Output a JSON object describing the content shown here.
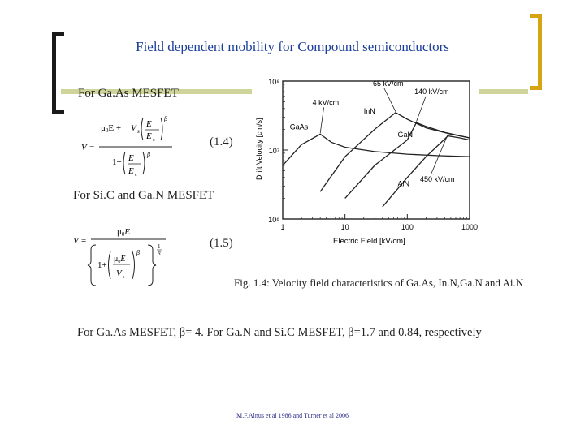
{
  "slide": {
    "title": "Field dependent mobility for Compound semiconductors",
    "gaas_heading": "For Ga.As MESFET",
    "eq1_label": "(1.4)",
    "sic_heading": "For Si.C and Ga.N MESFET",
    "eq2_label": "(1.5)",
    "caption": "Fig. 1.4: Velocity field characteristics of Ga.As, In.N,Ga.N and Ai.N",
    "beta_note": "For Ga.As MESFET, β= 4. For Ga.N and Si.C MESFET,  β=1.7 and 0.84, respectively",
    "references": "M.F.Alnus et al 1986 and Turner et al 2006"
  },
  "colors": {
    "title": "#1a3d99",
    "left_bracket": "#1a1a1a",
    "right_bracket": "#d6a514",
    "accent_bar": "#cfd49a"
  },
  "chart_data": {
    "type": "line",
    "xlabel": "Electric Field [kV/cm]",
    "ylabel": "Drift Velocity [cm/s]",
    "x_scale": "log",
    "y_scale": "log",
    "xlim": [
      1,
      1000
    ],
    "ylim": [
      1000000,
      100000000
    ],
    "x_ticks": [
      "1",
      "10",
      "100",
      "1000"
    ],
    "y_ticks": [
      "10⁶",
      "10⁷",
      "10⁸"
    ],
    "series": [
      {
        "name": "GaAs",
        "points": [
          [
            1,
            6000000
          ],
          [
            2,
            12000000
          ],
          [
            4,
            17000000
          ],
          [
            6,
            13000000
          ],
          [
            10,
            11000000
          ],
          [
            30,
            9500000
          ],
          [
            100,
            8700000
          ],
          [
            300,
            8300000
          ],
          [
            1000,
            8000000
          ]
        ]
      },
      {
        "name": "InN",
        "points": [
          [
            4,
            2500000
          ],
          [
            10,
            8000000
          ],
          [
            30,
            20000000
          ],
          [
            65,
            35000000
          ],
          [
            100,
            28000000
          ],
          [
            200,
            21000000
          ],
          [
            500,
            17000000
          ],
          [
            1000,
            15000000
          ]
        ]
      },
      {
        "name": "GaN",
        "points": [
          [
            10,
            2000000
          ],
          [
            30,
            6000000
          ],
          [
            100,
            14000000
          ],
          [
            140,
            25000000
          ],
          [
            200,
            22000000
          ],
          [
            400,
            18000000
          ],
          [
            1000,
            15000000
          ]
        ]
      },
      {
        "name": "AlN",
        "points": [
          [
            40,
            1500000
          ],
          [
            100,
            4000000
          ],
          [
            200,
            8000000
          ],
          [
            450,
            16000000
          ],
          [
            700,
            15000000
          ],
          [
            1000,
            14000000
          ]
        ]
      }
    ],
    "annotations": [
      "4 kV/cm",
      "65 kV/cm",
      "140 kV/cm",
      "450 kV/cm"
    ]
  }
}
